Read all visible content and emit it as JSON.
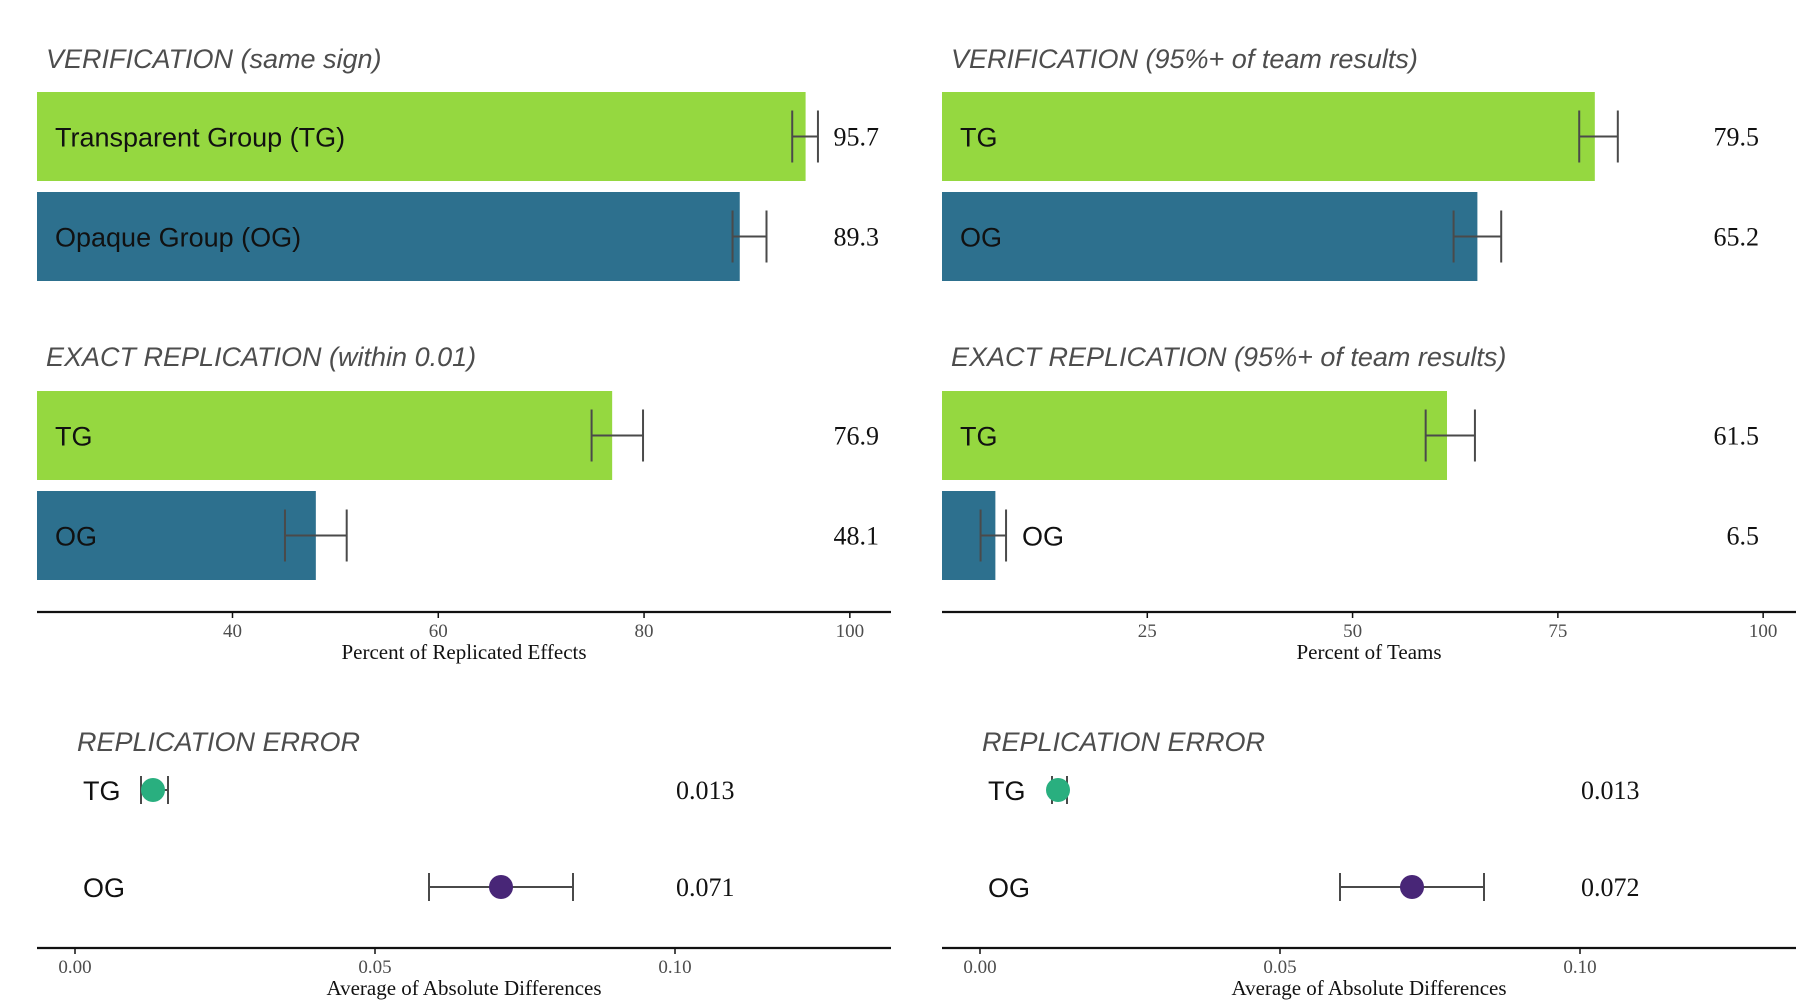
{
  "chart_data": [
    {
      "type": "bar",
      "orientation": "horizontal",
      "title": "VERIFICATION (same sign)",
      "categories": [
        "Transparent Group (TG)",
        "Opaque Group (OG)"
      ],
      "values": [
        95.7,
        89.3
      ],
      "value_labels": [
        "95.7",
        "89.3"
      ],
      "error_low": [
        94.4,
        88.6
      ],
      "error_high": [
        96.9,
        91.9
      ],
      "colors": [
        "#95d840",
        "#2d708e"
      ],
      "xlim": [
        21,
        104
      ],
      "xticks": [
        40,
        60,
        80,
        100
      ],
      "xlabel": "Percent of Replicated Effects"
    },
    {
      "type": "bar",
      "orientation": "horizontal",
      "title": "EXACT REPLICATION (within 0.01)",
      "categories": [
        "TG",
        "OG"
      ],
      "values": [
        76.9,
        48.1
      ],
      "value_labels": [
        "76.9",
        "48.1"
      ],
      "error_low": [
        74.9,
        45.1
      ],
      "error_high": [
        79.9,
        51.1
      ],
      "colors": [
        "#95d840",
        "#2d708e"
      ],
      "xlim": [
        21,
        104
      ],
      "xticks": [
        40,
        60,
        80,
        100
      ],
      "xlabel": "Percent of Replicated Effects"
    },
    {
      "type": "bar",
      "orientation": "horizontal",
      "title": "VERIFICATION (95%+ of team results)",
      "categories": [
        "TG",
        "OG"
      ],
      "values": [
        79.5,
        65.2
      ],
      "value_labels": [
        "79.5",
        "65.2"
      ],
      "error_low": [
        77.6,
        62.3
      ],
      "error_high": [
        82.3,
        68.1
      ],
      "colors": [
        "#95d840",
        "#2d708e"
      ],
      "xlim": [
        0,
        104
      ],
      "xticks": [
        25,
        50,
        75,
        100
      ],
      "xlabel": "Percent of Teams"
    },
    {
      "type": "bar",
      "orientation": "horizontal",
      "title": "EXACT REPLICATION (95%+ of team results)",
      "categories": [
        "TG",
        "OG"
      ],
      "values": [
        61.5,
        6.5
      ],
      "value_labels": [
        "61.5",
        "6.5"
      ],
      "error_low": [
        58.9,
        4.7
      ],
      "error_high": [
        64.9,
        7.8
      ],
      "colors": [
        "#95d840",
        "#2d708e"
      ],
      "xlim": [
        0,
        104
      ],
      "xticks": [
        25,
        50,
        75,
        100
      ],
      "xlabel": "Percent of Teams"
    },
    {
      "type": "scatter",
      "title": "REPLICATION ERROR",
      "categories": [
        "TG",
        "OG"
      ],
      "values": [
        0.013,
        0.071
      ],
      "value_labels": [
        "0.013",
        "0.071"
      ],
      "error_low": [
        0.011,
        0.059
      ],
      "error_high": [
        0.0155,
        0.083
      ],
      "colors": [
        "#29af7f",
        "#482677"
      ],
      "xlim": [
        -0.006,
        0.136
      ],
      "xticks": [
        0.0,
        0.05,
        0.1
      ],
      "xtick_labels": [
        "0.00",
        "0.05",
        "0.10"
      ],
      "xlabel": "Average of Absolute Differences"
    },
    {
      "type": "scatter",
      "title": "REPLICATION ERROR",
      "categories": [
        "TG",
        "OG"
      ],
      "values": [
        0.013,
        0.072
      ],
      "value_labels": [
        "0.013",
        "0.072"
      ],
      "error_low": [
        0.012,
        0.06
      ],
      "error_high": [
        0.0145,
        0.084
      ],
      "colors": [
        "#29af7f",
        "#482677"
      ],
      "xlim": [
        -0.006,
        0.136
      ],
      "xticks": [
        0.0,
        0.05,
        0.1
      ],
      "xtick_labels": [
        "0.00",
        "0.05",
        "0.10"
      ],
      "xlabel": "Average of Absolute Differences"
    }
  ]
}
